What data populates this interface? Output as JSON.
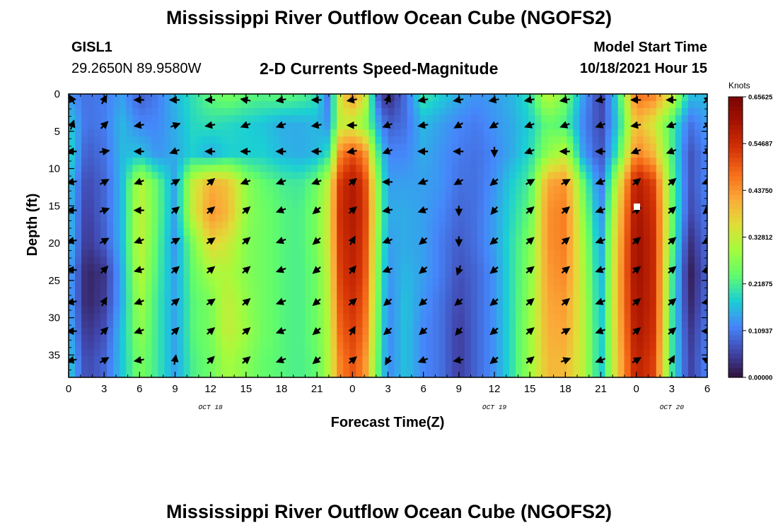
{
  "header": {
    "title": "Mississippi River Outflow Ocean Cube (NGOFS2)",
    "station": "GISL1",
    "coords": "29.2650N  89.9580W",
    "subtitle": "2-D Currents Speed-Magnitude",
    "model_start_label": "Model Start Time",
    "model_start_value": "10/18/2021 Hour 15"
  },
  "footer": {
    "title": "Mississippi River Outflow Ocean Cube (NGOFS2)"
  },
  "chart_data": {
    "type": "heatmap",
    "title": "2-D Currents Speed-Magnitude",
    "xlabel": "Forecast Time(Z)",
    "ylabel": "Depth (ft)",
    "x_range_hours": [
      0,
      54
    ],
    "x_tick_hours": [
      0,
      3,
      6,
      9,
      12,
      15,
      18,
      21,
      24,
      27,
      30,
      33,
      36,
      39,
      42,
      45,
      48,
      51,
      54
    ],
    "x_tick_labels": [
      "0",
      "3",
      "6",
      "9",
      "12",
      "15",
      "18",
      "21",
      "0",
      "3",
      "6",
      "9",
      "12",
      "15",
      "18",
      "21",
      "0",
      "3",
      "6"
    ],
    "date_labels": [
      {
        "hour": 12,
        "label": "OCT 18"
      },
      {
        "hour": 36,
        "label": "OCT 19"
      },
      {
        "hour": 51,
        "label": "OCT 20"
      }
    ],
    "y_range": [
      0,
      38
    ],
    "y_inverted": true,
    "y_ticks": [
      0,
      5,
      10,
      15,
      20,
      25,
      30,
      35
    ],
    "y_tick_labels": [
      "0",
      "5",
      "10",
      "15",
      "20",
      "25",
      "30",
      "35"
    ],
    "colorbar": {
      "title": "Knots",
      "range": [
        0,
        0.65625
      ],
      "ticks": [
        0.0,
        0.109375,
        0.21875,
        0.328125,
        0.4375,
        0.546875,
        0.65625
      ],
      "tick_labels": [
        "0.00000",
        "0.10937",
        "0.21875",
        "0.32812",
        "0.43750",
        "0.54687",
        "0.65625"
      ],
      "colors": [
        "#30123b",
        "#4146ac",
        "#4686fb",
        "#1bcfd4",
        "#61fc6c",
        "#a4fc3c",
        "#e1dd37",
        "#fba938",
        "#f66b19",
        "#d23105",
        "#a51301",
        "#7a0403"
      ]
    },
    "speed_profiles": {
      "times": [
        0,
        1.5,
        3,
        4.5,
        6,
        7.5,
        9,
        10.5,
        12,
        13.5,
        15,
        16.5,
        18,
        19.5,
        21,
        22,
        23,
        24,
        25,
        26,
        27,
        28.5,
        30,
        31.5,
        33,
        34.5,
        36,
        37.5,
        39,
        40.5,
        42,
        43.5,
        45,
        46.5,
        48,
        49.5,
        51,
        52.5,
        54
      ],
      "depths": [
        0,
        4,
        8,
        12,
        16,
        20,
        24,
        28,
        32,
        36
      ],
      "speed": [
        [
          0.13,
          0.18,
          0.2,
          0.17,
          0.17,
          0.17,
          0.15,
          0.15,
          0.16,
          0.18
        ],
        [
          0.1,
          0.1,
          0.08,
          0.06,
          0.05,
          0.04,
          0.02,
          0.02,
          0.04,
          0.06
        ],
        [
          0.11,
          0.11,
          0.1,
          0.09,
          0.09,
          0.08,
          0.04,
          0.05,
          0.07,
          0.09
        ],
        [
          0.14,
          0.16,
          0.16,
          0.16,
          0.16,
          0.16,
          0.15,
          0.15,
          0.17,
          0.17
        ],
        [
          0.08,
          0.12,
          0.17,
          0.32,
          0.33,
          0.33,
          0.32,
          0.3,
          0.28,
          0.26
        ],
        [
          0.11,
          0.12,
          0.13,
          0.24,
          0.24,
          0.23,
          0.22,
          0.21,
          0.21,
          0.21
        ],
        [
          0.16,
          0.15,
          0.15,
          0.14,
          0.14,
          0.13,
          0.14,
          0.14,
          0.14,
          0.14
        ],
        [
          0.2,
          0.19,
          0.18,
          0.33,
          0.33,
          0.26,
          0.24,
          0.23,
          0.23,
          0.22
        ],
        [
          0.24,
          0.2,
          0.15,
          0.41,
          0.44,
          0.37,
          0.3,
          0.26,
          0.26,
          0.25
        ],
        [
          0.26,
          0.19,
          0.18,
          0.39,
          0.4,
          0.34,
          0.31,
          0.33,
          0.33,
          0.3
        ],
        [
          0.24,
          0.18,
          0.18,
          0.28,
          0.28,
          0.27,
          0.27,
          0.28,
          0.29,
          0.27
        ],
        [
          0.23,
          0.17,
          0.18,
          0.24,
          0.25,
          0.25,
          0.25,
          0.25,
          0.25,
          0.24
        ],
        [
          0.24,
          0.15,
          0.16,
          0.22,
          0.23,
          0.23,
          0.23,
          0.23,
          0.23,
          0.23
        ],
        [
          0.23,
          0.15,
          0.15,
          0.21,
          0.22,
          0.22,
          0.22,
          0.22,
          0.22,
          0.22
        ],
        [
          0.2,
          0.16,
          0.16,
          0.25,
          0.26,
          0.26,
          0.25,
          0.25,
          0.25,
          0.24
        ],
        [
          0.1,
          0.13,
          0.2,
          0.33,
          0.34,
          0.34,
          0.33,
          0.32,
          0.31,
          0.31
        ],
        [
          0.36,
          0.33,
          0.46,
          0.54,
          0.55,
          0.54,
          0.53,
          0.51,
          0.49,
          0.46
        ],
        [
          0.44,
          0.32,
          0.5,
          0.58,
          0.58,
          0.57,
          0.56,
          0.54,
          0.52,
          0.5
        ],
        [
          0.36,
          0.28,
          0.46,
          0.53,
          0.54,
          0.53,
          0.52,
          0.5,
          0.48,
          0.45
        ],
        [
          0.1,
          0.16,
          0.24,
          0.3,
          0.31,
          0.3,
          0.29,
          0.28,
          0.27,
          0.26
        ],
        [
          0.02,
          0.08,
          0.12,
          0.14,
          0.15,
          0.14,
          0.13,
          0.12,
          0.12,
          0.12
        ],
        [
          0.1,
          0.1,
          0.12,
          0.14,
          0.15,
          0.15,
          0.16,
          0.17,
          0.17,
          0.17
        ],
        [
          0.21,
          0.16,
          0.15,
          0.14,
          0.14,
          0.14,
          0.14,
          0.13,
          0.12,
          0.12
        ],
        [
          0.18,
          0.14,
          0.13,
          0.13,
          0.12,
          0.11,
          0.11,
          0.1,
          0.1,
          0.1
        ],
        [
          0.15,
          0.12,
          0.11,
          0.1,
          0.09,
          0.08,
          0.07,
          0.06,
          0.05,
          0.05
        ],
        [
          0.13,
          0.11,
          0.1,
          0.1,
          0.1,
          0.1,
          0.09,
          0.09,
          0.09,
          0.09
        ],
        [
          0.14,
          0.13,
          0.12,
          0.13,
          0.14,
          0.14,
          0.13,
          0.13,
          0.13,
          0.13
        ],
        [
          0.16,
          0.15,
          0.15,
          0.18,
          0.19,
          0.2,
          0.2,
          0.2,
          0.2,
          0.2
        ],
        [
          0.2,
          0.18,
          0.19,
          0.22,
          0.24,
          0.26,
          0.27,
          0.28,
          0.29,
          0.29
        ],
        [
          0.33,
          0.24,
          0.28,
          0.42,
          0.44,
          0.44,
          0.43,
          0.42,
          0.41,
          0.4
        ],
        [
          0.26,
          0.22,
          0.32,
          0.44,
          0.46,
          0.46,
          0.45,
          0.43,
          0.42,
          0.4
        ],
        [
          0.14,
          0.12,
          0.14,
          0.25,
          0.28,
          0.3,
          0.31,
          0.32,
          0.32,
          0.32
        ],
        [
          0.05,
          0.06,
          0.07,
          0.1,
          0.12,
          0.14,
          0.15,
          0.16,
          0.17,
          0.17
        ],
        [
          0.2,
          0.18,
          0.22,
          0.34,
          0.38,
          0.4,
          0.41,
          0.41,
          0.4,
          0.39
        ],
        [
          0.48,
          0.4,
          0.46,
          0.58,
          0.6,
          0.61,
          0.61,
          0.6,
          0.59,
          0.57
        ],
        [
          0.46,
          0.34,
          0.4,
          0.52,
          0.54,
          0.55,
          0.55,
          0.55,
          0.54,
          0.52
        ],
        [
          0.34,
          0.22,
          0.22,
          0.24,
          0.25,
          0.24,
          0.22,
          0.21,
          0.21,
          0.21
        ],
        [
          0.17,
          0.1,
          0.07,
          0.07,
          0.06,
          0.03,
          0.01,
          0.02,
          0.04,
          0.05
        ],
        [
          0.16,
          0.14,
          0.12,
          0.12,
          0.11,
          0.1,
          0.09,
          0.1,
          0.11,
          0.12
        ]
      ]
    },
    "vector_grid": {
      "times": [
        0.3,
        3,
        6,
        9,
        12,
        15,
        18,
        21,
        24,
        27,
        30,
        33,
        36,
        39,
        42,
        45,
        48,
        51,
        54
      ],
      "depths": [
        0.8,
        4.2,
        7.7,
        11.8,
        15.6,
        19.7,
        23.6,
        27.9,
        31.8,
        35.7
      ],
      "angles_deg": [
        [
          120,
          70,
          180,
          190,
          180,
          190,
          180,
          190,
          180,
          190
        ],
        [
          60,
          45,
          10,
          30,
          20,
          30,
          45,
          60,
          45,
          30
        ],
        [
          180,
          190,
          180,
          200,
          180,
          200,
          195,
          200,
          200,
          190
        ],
        [
          180,
          20,
          200,
          30,
          40,
          30,
          40,
          40,
          45,
          80
        ],
        [
          180,
          190,
          180,
          40,
          40,
          35,
          40,
          35,
          40,
          45
        ],
        [
          170,
          200,
          180,
          200,
          40,
          40,
          40,
          40,
          40,
          40
        ],
        [
          190,
          200,
          180,
          200,
          200,
          200,
          200,
          200,
          200,
          200
        ],
        [
          180,
          190,
          180,
          200,
          220,
          220,
          220,
          220,
          220,
          220
        ],
        [
          190,
          180,
          190,
          40,
          40,
          60,
          50,
          40,
          60,
          40
        ],
        [
          70,
          200,
          200,
          180,
          190,
          200,
          200,
          220,
          220,
          240
        ],
        [
          190,
          190,
          180,
          200,
          200,
          220,
          220,
          220,
          220,
          200
        ],
        [
          190,
          210,
          180,
          210,
          270,
          270,
          250,
          220,
          230,
          190
        ],
        [
          190,
          210,
          270,
          220,
          230,
          220,
          220,
          220,
          220,
          220
        ],
        [
          190,
          200,
          200,
          30,
          40,
          40,
          40,
          40,
          40,
          40
        ],
        [
          190,
          200,
          180,
          30,
          40,
          40,
          40,
          40,
          30,
          20
        ],
        [
          190,
          200,
          180,
          200,
          200,
          200,
          200,
          200,
          200,
          200
        ],
        [
          180,
          190,
          200,
          40,
          30,
          40,
          40,
          40,
          40,
          30
        ],
        [
          180,
          200,
          200,
          40,
          40,
          40,
          40,
          40,
          40,
          60
        ],
        [
          40,
          30,
          20,
          200,
          220,
          210,
          200,
          190,
          180,
          160
        ]
      ]
    }
  }
}
